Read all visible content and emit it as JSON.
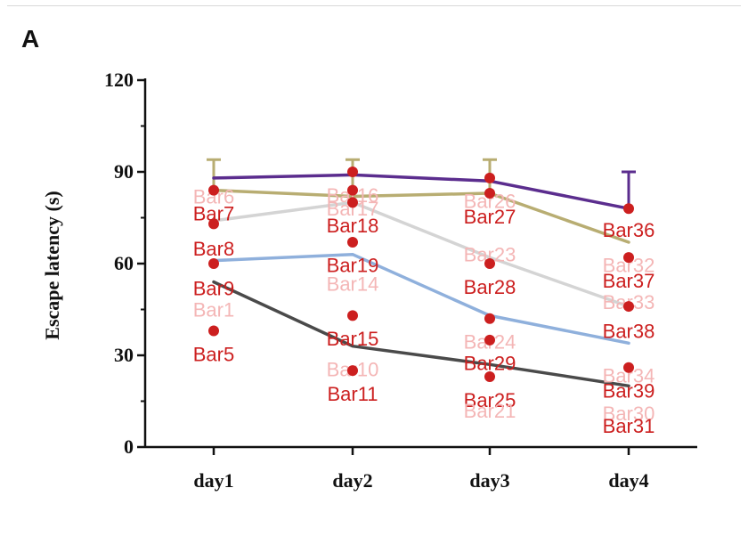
{
  "panel": {
    "letter": "A"
  },
  "chart_data": {
    "type": "line",
    "categories": [
      "day1",
      "day2",
      "day3",
      "day4"
    ],
    "ylabel": "Escape latency (s)",
    "xlabel": "",
    "ylim": [
      0,
      120
    ],
    "yticks": [
      0,
      30,
      60,
      90,
      120
    ],
    "grid": false,
    "legend": "none",
    "series": [
      {
        "color": "#5b2d8e",
        "values": [
          88,
          89,
          87,
          78
        ],
        "error_top": [
          null,
          null,
          null,
          90
        ]
      },
      {
        "color": "#b8ad72",
        "values": [
          84,
          82,
          83,
          67
        ],
        "error_top": [
          94,
          94,
          94,
          null
        ]
      },
      {
        "color": "#d4d4d4",
        "values": [
          74,
          80,
          62,
          46
        ],
        "error_top": [
          null,
          null,
          null,
          null
        ]
      },
      {
        "color": "#8fb0dc",
        "values": [
          61,
          63,
          43,
          34
        ],
        "error_top": [
          null,
          null,
          null,
          null
        ]
      },
      {
        "color": "#4a4a4a",
        "values": [
          54,
          33,
          27,
          20
        ],
        "error_top": [
          null,
          null,
          null,
          null
        ]
      }
    ],
    "annotations": [
      {
        "text": "Bar6",
        "x": "day1",
        "y": 82,
        "color": "#f4b6b6",
        "marker": false
      },
      {
        "text": "Bar7",
        "x": "day1",
        "y": 76.5,
        "color": "#cc1f1f",
        "marker": true,
        "marker_y": 84
      },
      {
        "text": "Bar8",
        "x": "day1",
        "y": 65,
        "color": "#cc1f1f",
        "marker": true,
        "marker_y": 73
      },
      {
        "text": "Bar9",
        "x": "day1",
        "y": 52,
        "color": "#cc1f1f",
        "marker": true,
        "marker_y": 60
      },
      {
        "text": "Bar1",
        "x": "day1",
        "y": 45,
        "color": "#f4b6b6",
        "marker": false
      },
      {
        "text": "Bar5",
        "x": "day1",
        "y": 30.5,
        "color": "#cc1f1f",
        "marker": true,
        "marker_y": 38
      },
      {
        "text": "Bar16",
        "x": "day2",
        "y": 82.5,
        "color": "#f4b6b6",
        "marker": true,
        "marker_y": 90
      },
      {
        "text": "Bar17",
        "x": "day2",
        "y": 78,
        "color": "#f4b6b6",
        "marker": true,
        "marker_y": 84
      },
      {
        "text": "Bar18",
        "x": "day2",
        "y": 72.5,
        "color": "#cc1f1f",
        "marker": true,
        "marker_y": 80
      },
      {
        "text": "Bar19",
        "x": "day2",
        "y": 59.5,
        "color": "#cc1f1f",
        "marker": true,
        "marker_y": 67
      },
      {
        "text": "Bar14",
        "x": "day2",
        "y": 53.5,
        "color": "#f4b6b6",
        "marker": false
      },
      {
        "text": "Bar15",
        "x": "day2",
        "y": 35.5,
        "color": "#cc1f1f",
        "marker": true,
        "marker_y": 43
      },
      {
        "text": "Bar10",
        "x": "day2",
        "y": 25.5,
        "color": "#f4b6b6",
        "marker": false
      },
      {
        "text": "Bar11",
        "x": "day2",
        "y": 17.5,
        "color": "#cc1f1f",
        "marker": true,
        "marker_y": 25
      },
      {
        "text": "Bar26",
        "x": "day3",
        "y": 80.5,
        "color": "#f4b6b6",
        "marker": true,
        "marker_y": 88
      },
      {
        "text": "Bar27",
        "x": "day3",
        "y": 75.5,
        "color": "#cc1f1f",
        "marker": true,
        "marker_y": 83
      },
      {
        "text": "Bar23",
        "x": "day3",
        "y": 63,
        "color": "#f4b6b6",
        "marker": false
      },
      {
        "text": "Bar28",
        "x": "day3",
        "y": 52.5,
        "color": "#cc1f1f",
        "marker": true,
        "marker_y": 60
      },
      {
        "text": "Bar24",
        "x": "day3",
        "y": 34.5,
        "color": "#f4b6b6",
        "marker": true,
        "marker_y": 42
      },
      {
        "text": "Bar29",
        "x": "day3",
        "y": 27.5,
        "color": "#cc1f1f",
        "marker": true,
        "marker_y": 35
      },
      {
        "text": "Bar25",
        "x": "day3",
        "y": 15.5,
        "color": "#cc1f1f",
        "marker": false
      },
      {
        "text": "Bar21",
        "x": "day3",
        "y": 12,
        "color": "#f4b6b6",
        "marker": true,
        "marker_y": 23
      },
      {
        "text": "Bar36",
        "x": "day4",
        "y": 71,
        "color": "#cc1f1f",
        "marker": true,
        "marker_y": 78
      },
      {
        "text": "Bar32",
        "x": "day4",
        "y": 59.5,
        "color": "#f4b6b6",
        "marker": false
      },
      {
        "text": "Bar37",
        "x": "day4",
        "y": 54.5,
        "color": "#cc1f1f",
        "marker": true,
        "marker_y": 62
      },
      {
        "text": "Bar33",
        "x": "day4",
        "y": 47.5,
        "color": "#f4b6b6",
        "marker": false
      },
      {
        "text": "Bar38",
        "x": "day4",
        "y": 38,
        "color": "#cc1f1f",
        "marker": true,
        "marker_y": 46
      },
      {
        "text": "Bar34",
        "x": "day4",
        "y": 23.5,
        "color": "#f4b6b6",
        "marker": false
      },
      {
        "text": "Bar39",
        "x": "day4",
        "y": 18.5,
        "color": "#cc1f1f",
        "marker": true,
        "marker_y": 26
      },
      {
        "text": "Bar30",
        "x": "day4",
        "y": 11,
        "color": "#f4b6b6",
        "marker": false
      },
      {
        "text": "Bar31",
        "x": "day4",
        "y": 7,
        "color": "#cc1f1f",
        "marker": false
      }
    ]
  }
}
